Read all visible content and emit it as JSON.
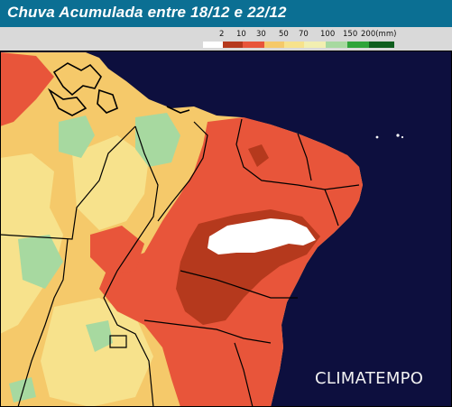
{
  "title": "Chuva Acumulada entre 18/12 e 22/12",
  "legend": {
    "unit_label": "(mm)",
    "labels": [
      "2",
      "10",
      "30",
      "50",
      "70",
      "100",
      "150",
      "200(mm)"
    ],
    "colors": {
      "lt2": "#ffffff",
      "2_10": "#b5391d",
      "10_30": "#e8553a",
      "30_50": "#f5c96a",
      "50_70": "#f7e28c",
      "70_100": "#f2efb1",
      "100_150": "#a7d9a0",
      "150_200": "#2fa43a",
      "gt200": "#0f5e1e"
    }
  },
  "map": {
    "ocean_color": "#0d0f3e",
    "border_color": "#000000"
  },
  "logo": "CLIMATEMPO"
}
